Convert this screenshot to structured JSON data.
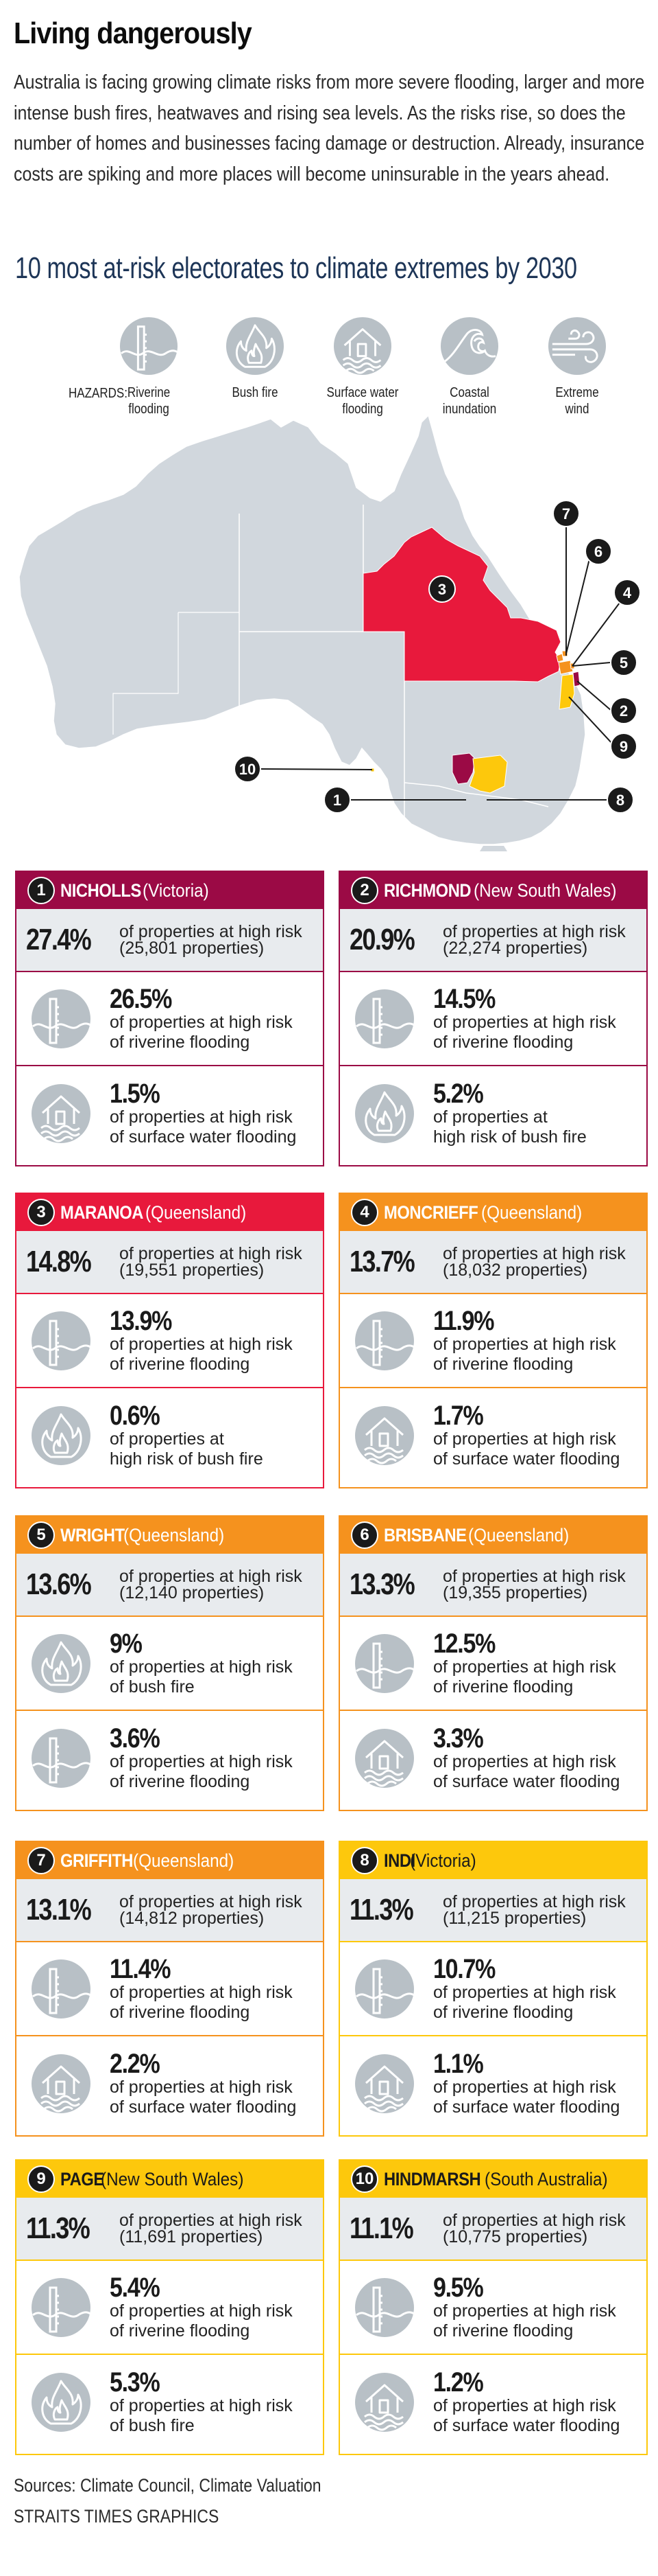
{
  "header": {
    "title": "Living dangerously",
    "intro": "Australia is facing growing climate risks from more severe flooding, larger and more intense bush fires, heatwaves and rising sea levels. As the risks rise, so does the number of homes and businesses facing damage or destruction. Already, insurance costs are spiking and more places will become uninsurable in the years ahead.",
    "subtitle": "10 most at-risk electorates to climate extremes by 2030"
  },
  "hazards": {
    "label": "HAZARDS:",
    "items": [
      {
        "icon": "riverine-flooding-icon",
        "line1": "Riverine",
        "line2": "flooding"
      },
      {
        "icon": "bush-fire-icon",
        "line1": "Bush fire",
        "line2": ""
      },
      {
        "icon": "surface-water-flooding-icon",
        "line1": "Surface water",
        "line2": "flooding"
      },
      {
        "icon": "coastal-inundation-icon",
        "line1": "Coastal",
        "line2": "inundation"
      },
      {
        "icon": "extreme-wind-icon",
        "line1": "Extreme",
        "line2": "wind"
      }
    ]
  },
  "colors": {
    "rank1_2": "#9b0a45",
    "rank3": "#e8193c",
    "rank4_7": "#f5921e",
    "rank8_10": "#fdc80c",
    "map_land": "#d1d7dd",
    "icon_grey": "#b8c0c6",
    "panel_grey": "#e8ebee"
  },
  "map": {
    "markers": [
      "1",
      "2",
      "3",
      "4",
      "5",
      "6",
      "7",
      "8",
      "9",
      "10"
    ]
  },
  "electorates": [
    {
      "rank": "1",
      "name": "NICHOLLS",
      "state": "(Victoria)",
      "color": "#9b0a45",
      "text_color": "#ffffff",
      "total_pct": "27.4%",
      "total_line1": "of properties at high risk",
      "total_line2": "(25,801 properties)",
      "hazards": [
        {
          "icon": "riverine",
          "pct": "26.5%",
          "line1": "of properties at high risk",
          "line2": "of riverine flooding"
        },
        {
          "icon": "surface",
          "pct": "1.5%",
          "line1": "of properties at high risk",
          "line2": "of surface water flooding"
        }
      ]
    },
    {
      "rank": "2",
      "name": "RICHMOND",
      "state": "(New South Wales)",
      "color": "#9b0a45",
      "text_color": "#ffffff",
      "total_pct": "20.9%",
      "total_line1": "of properties at high risk",
      "total_line2": "(22,274 properties)",
      "hazards": [
        {
          "icon": "riverine",
          "pct": "14.5%",
          "line1": "of properties at high risk",
          "line2": "of riverine flooding"
        },
        {
          "icon": "fire",
          "pct": "5.2%",
          "line1": "of properties at",
          "line2": "high risk of bush fire"
        }
      ]
    },
    {
      "rank": "3",
      "name": "MARANOA",
      "state": "(Queensland)",
      "color": "#e8193c",
      "text_color": "#ffffff",
      "total_pct": "14.8%",
      "total_line1": "of properties at high risk",
      "total_line2": "(19,551 properties)",
      "hazards": [
        {
          "icon": "riverine",
          "pct": "13.9%",
          "line1": "of properties at high risk",
          "line2": "of riverine flooding"
        },
        {
          "icon": "fire",
          "pct": "0.6%",
          "line1": "of properties at",
          "line2": "high risk of bush fire"
        }
      ]
    },
    {
      "rank": "4",
      "name": "MONCRIEFF",
      "state": "(Queensland)",
      "color": "#f5921e",
      "text_color": "#ffffff",
      "total_pct": "13.7%",
      "total_line1": "of properties at high risk",
      "total_line2": "(18,032 properties)",
      "hazards": [
        {
          "icon": "riverine",
          "pct": "11.9%",
          "line1": "of properties at high risk",
          "line2": "of riverine flooding"
        },
        {
          "icon": "surface",
          "pct": "1.7%",
          "line1": "of properties at high risk",
          "line2": "of surface water flooding"
        }
      ]
    },
    {
      "rank": "5",
      "name": "WRIGHT",
      "state": "(Queensland)",
      "color": "#f5921e",
      "text_color": "#ffffff",
      "total_pct": "13.6%",
      "total_line1": "of properties at high risk",
      "total_line2": "(12,140 properties)",
      "hazards": [
        {
          "icon": "fire",
          "pct": "9%",
          "line1": "of properties at high risk",
          "line2": "of bush fire"
        },
        {
          "icon": "riverine",
          "pct": "3.6%",
          "line1": "of properties at high risk",
          "line2": "of riverine flooding"
        }
      ]
    },
    {
      "rank": "6",
      "name": "BRISBANE",
      "state": "(Queensland)",
      "color": "#f5921e",
      "text_color": "#ffffff",
      "total_pct": "13.3%",
      "total_line1": "of properties at high risk",
      "total_line2": "(19,355 properties)",
      "hazards": [
        {
          "icon": "riverine",
          "pct": "12.5%",
          "line1": "of properties at high risk",
          "line2": "of riverine flooding"
        },
        {
          "icon": "surface",
          "pct": "3.3%",
          "line1": "of properties at high risk",
          "line2": "of surface water flooding"
        }
      ]
    },
    {
      "rank": "7",
      "name": "GRIFFITH",
      "state": "(Queensland)",
      "color": "#f5921e",
      "text_color": "#ffffff",
      "total_pct": "13.1%",
      "total_line1": "of properties at high risk",
      "total_line2": "(14,812 properties)",
      "hazards": [
        {
          "icon": "riverine",
          "pct": "11.4%",
          "line1": "of properties at high risk",
          "line2": "of riverine flooding"
        },
        {
          "icon": "surface",
          "pct": "2.2%",
          "line1": "of properties at high risk",
          "line2": "of surface water flooding"
        }
      ]
    },
    {
      "rank": "8",
      "name": "INDI",
      "state": "(Victoria)",
      "color": "#fdc80c",
      "text_color": "#1a1a1a",
      "total_pct": "11.3%",
      "total_line1": "of properties at high risk",
      "total_line2": "(11,215 properties)",
      "hazards": [
        {
          "icon": "riverine",
          "pct": "10.7%",
          "line1": "of properties at high risk",
          "line2": "of riverine flooding"
        },
        {
          "icon": "surface",
          "pct": "1.1%",
          "line1": "of properties at high risk",
          "line2": "of surface water flooding"
        }
      ]
    },
    {
      "rank": "9",
      "name": "PAGE",
      "state": "(New South Wales)",
      "color": "#fdc80c",
      "text_color": "#1a1a1a",
      "total_pct": "11.3%",
      "total_line1": "of properties at high risk",
      "total_line2": "(11,691 properties)",
      "hazards": [
        {
          "icon": "riverine",
          "pct": "5.4%",
          "line1": "of properties at high risk",
          "line2": "of riverine flooding"
        },
        {
          "icon": "fire",
          "pct": "5.3%",
          "line1": "of properties at high risk",
          "line2": "of bush fire"
        }
      ]
    },
    {
      "rank": "10",
      "name": "HINDMARSH",
      "state": "(South Australia)",
      "color": "#fdc80c",
      "text_color": "#1a1a1a",
      "total_pct": "11.1%",
      "total_line1": "of properties at high risk",
      "total_line2": "(10,775 properties)",
      "hazards": [
        {
          "icon": "riverine",
          "pct": "9.5%",
          "line1": "of properties at high risk",
          "line2": "of riverine flooding"
        },
        {
          "icon": "surface",
          "pct": "1.2%",
          "line1": "of properties at high risk",
          "line2": "of surface water flooding"
        }
      ]
    }
  ],
  "footer": {
    "sources": "Sources: Climate Council, Climate Valuation",
    "credit": "STRAITS TIMES GRAPHICS"
  }
}
